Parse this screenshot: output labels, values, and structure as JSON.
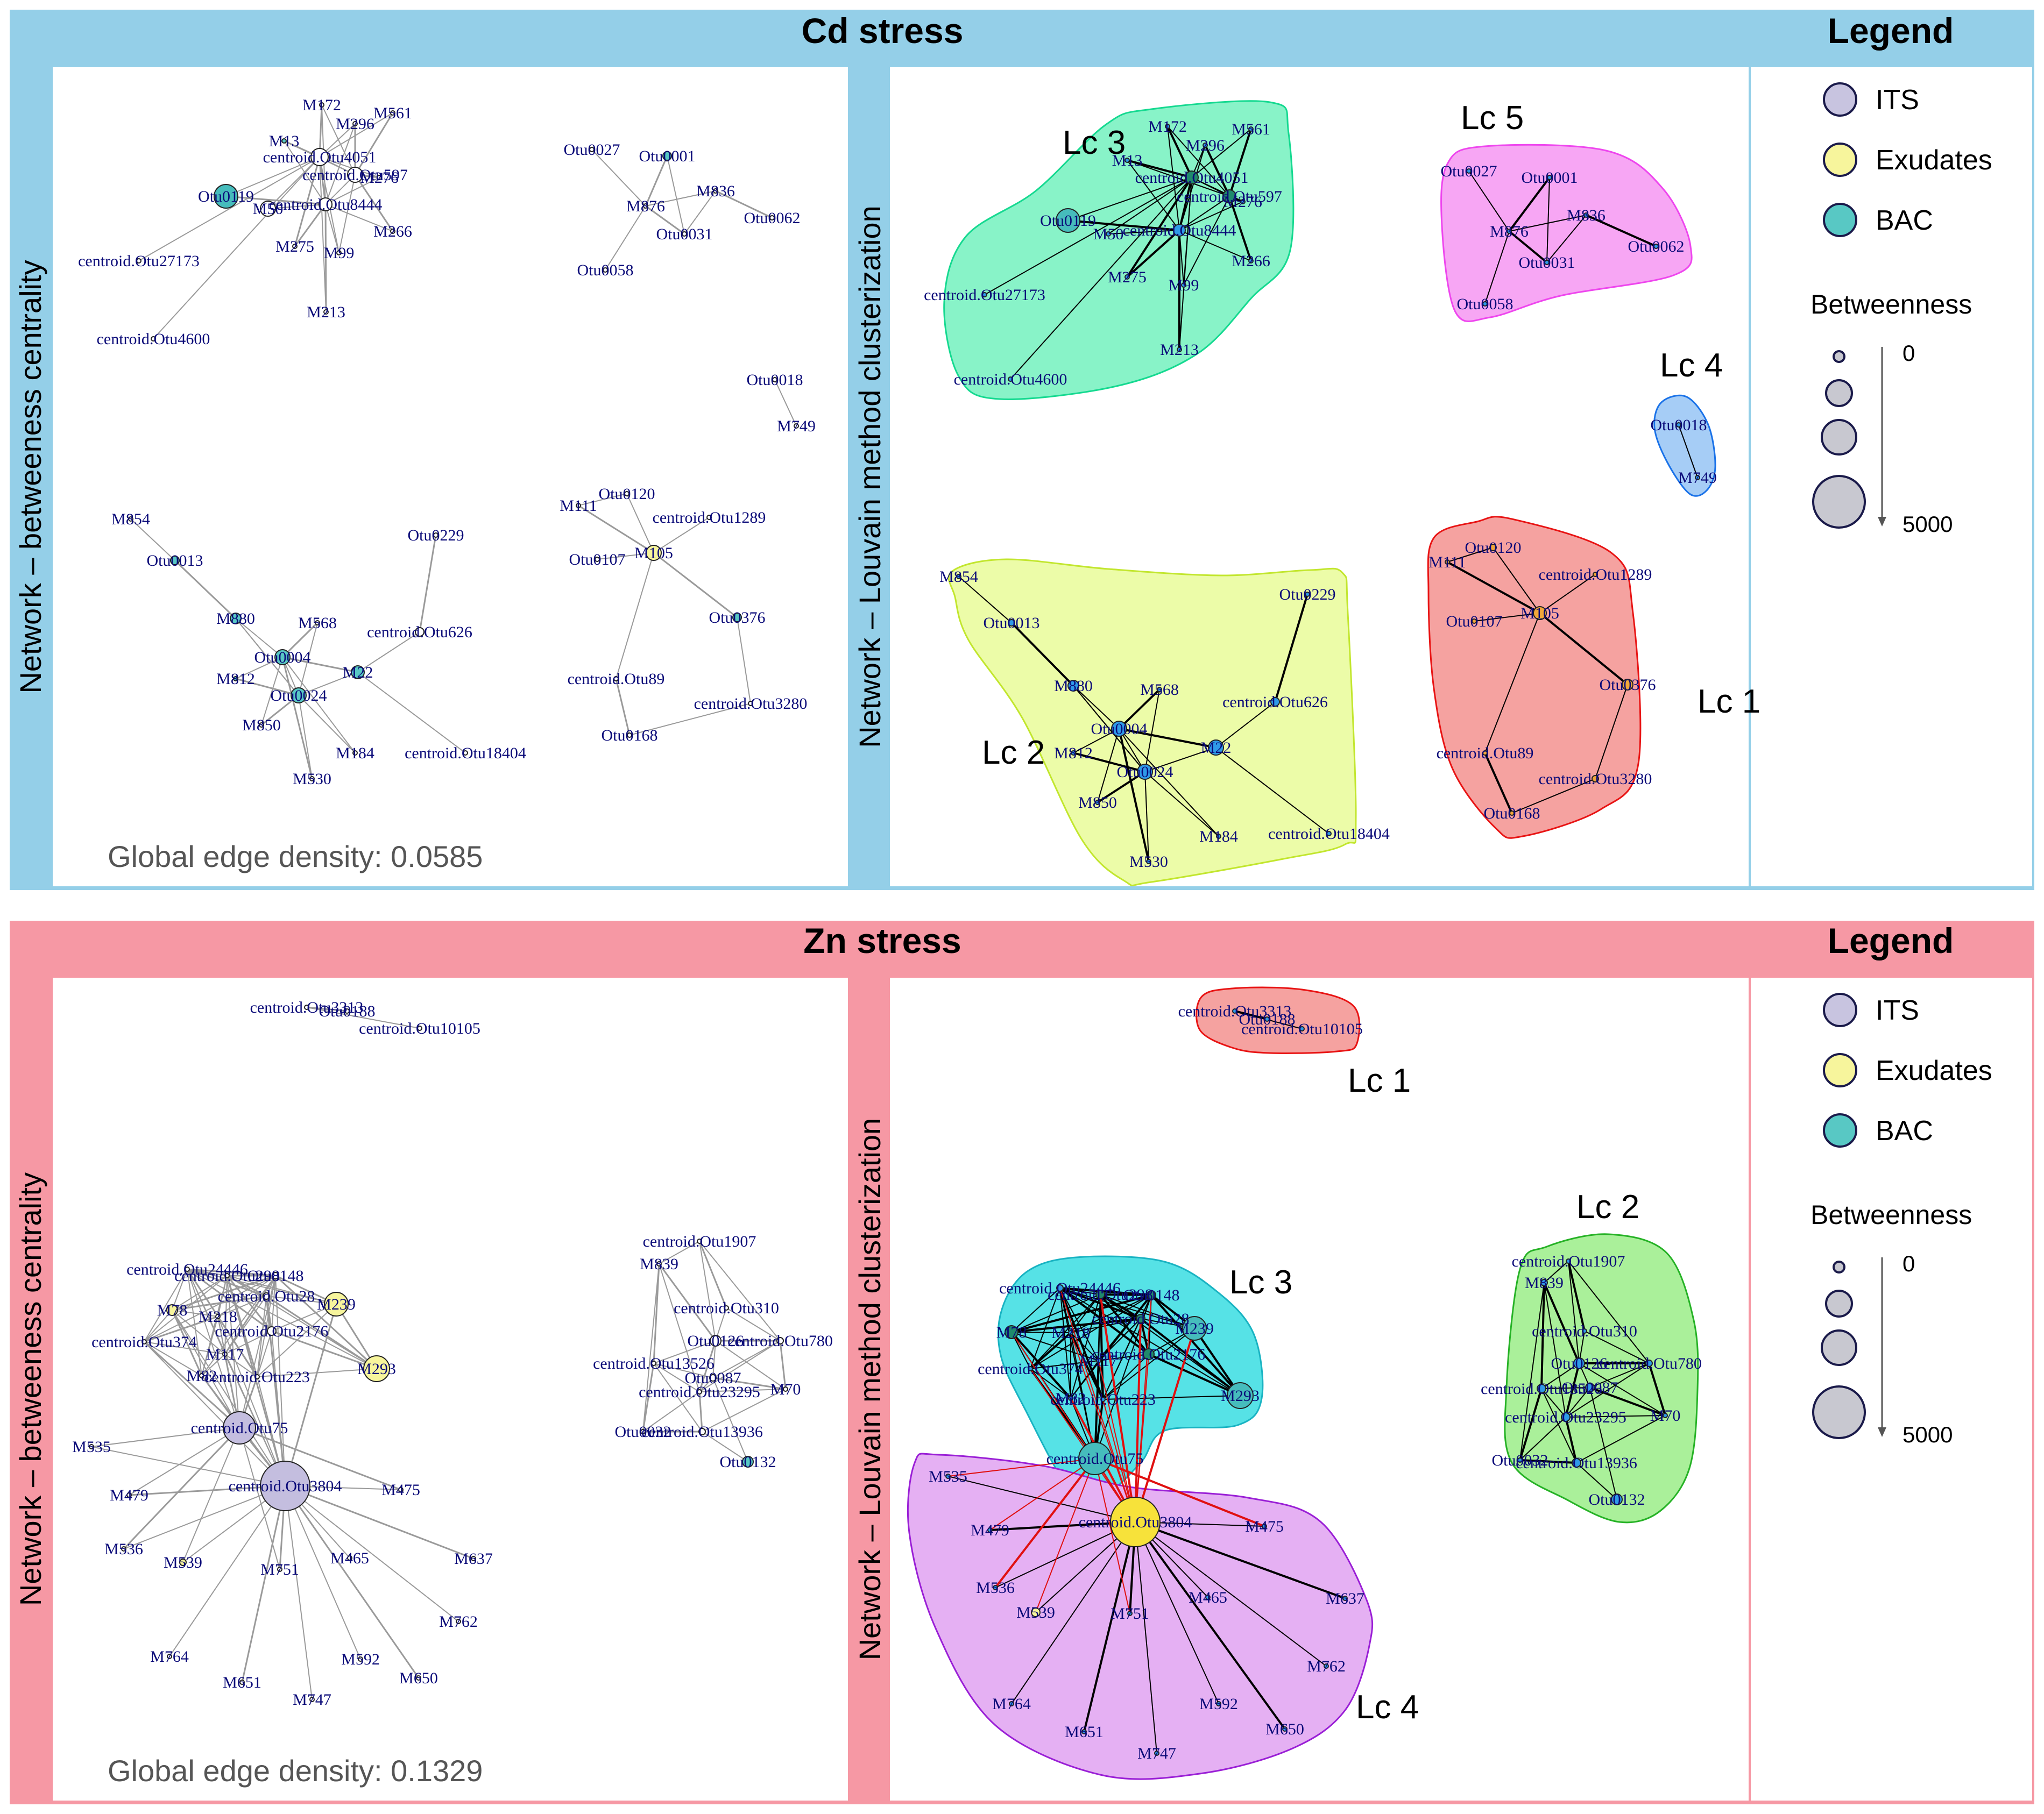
{
  "colors": {
    "cd_band": "#94cfe8",
    "zn_band": "#f698a4",
    "its": "#c8c4e0",
    "exudates": "#f7f59c",
    "bac": "#58c8c4",
    "node_blue": "#2f9ae8",
    "node_teal": "#1f8a6c",
    "node_orange": "#f2a73a",
    "node_yellow": "#f7e23a",
    "node_lav": "#c4bedf",
    "edge_gray": "#9a9a9a",
    "edge_black": "#000000",
    "edge_red": "#e01010",
    "label": "#0a0a78"
  },
  "legend": {
    "title": "Legend",
    "items": [
      {
        "label": "ITS",
        "color": "#c8c4e0"
      },
      {
        "label": "Exudates",
        "color": "#f7f59c"
      },
      {
        "label": "BAC",
        "color": "#58c8c4"
      }
    ],
    "betweenness_title": "Betweenness",
    "b_min": "0",
    "b_max": "5000"
  },
  "panels": [
    {
      "id": "cd",
      "title": "Cd stress",
      "left_label": "Network – betweeness centrality",
      "right_label": "Network – Louvain method clusterization",
      "density": "Global edge density: 0.0585",
      "clusters": [
        {
          "name": "Lc 3",
          "color": "#15d990"
        },
        {
          "name": "Lc 5",
          "color": "#ee46ee"
        },
        {
          "name": "Lc 4",
          "color": "#1a1ae8"
        },
        {
          "name": "Lc 2",
          "color": "#f2c033"
        },
        {
          "name": "Lc 1",
          "color": "#e81414"
        }
      ],
      "nodes": [
        {
          "label": "M172"
        },
        {
          "label": "M561"
        },
        {
          "label": "M296"
        },
        {
          "label": "M13"
        },
        {
          "label": "centroid.Otu4051"
        },
        {
          "label": "centroid.Otu597"
        },
        {
          "label": "M276"
        },
        {
          "label": "Otu0119"
        },
        {
          "label": "M50"
        },
        {
          "label": "centroid.Otu8444"
        },
        {
          "label": "M275"
        },
        {
          "label": "M266"
        },
        {
          "label": "M99"
        },
        {
          "label": "centroid.Otu27173"
        },
        {
          "label": "M213"
        },
        {
          "label": "centroid.Otu4600"
        },
        {
          "label": "Otu0027"
        },
        {
          "label": "Otu0001"
        },
        {
          "label": "M836"
        },
        {
          "label": "M876"
        },
        {
          "label": "Otu0031"
        },
        {
          "label": "Otu0062"
        },
        {
          "label": "Otu0058"
        },
        {
          "label": "Otu0018"
        },
        {
          "label": "M749"
        },
        {
          "label": "M854"
        },
        {
          "label": "Otu0013"
        },
        {
          "label": "M880"
        },
        {
          "label": "M568"
        },
        {
          "label": "Otu0004"
        },
        {
          "label": "M812"
        },
        {
          "label": "Otu0024"
        },
        {
          "label": "M850"
        },
        {
          "label": "M22"
        },
        {
          "label": "centroid.Otu626"
        },
        {
          "label": "Otu0229"
        },
        {
          "label": "M184"
        },
        {
          "label": "M530"
        },
        {
          "label": "centroid.Otu18404"
        },
        {
          "label": "Otu0120"
        },
        {
          "label": "M111"
        },
        {
          "label": "centroid.Otu1289"
        },
        {
          "label": "Otu0107"
        },
        {
          "label": "M105"
        },
        {
          "label": "Otu0376"
        },
        {
          "label": "centroid.Otu89"
        },
        {
          "label": "centroid.Otu3280"
        },
        {
          "label": "Otu0168"
        }
      ]
    },
    {
      "id": "zn",
      "title": "Zn stress",
      "left_label": "Network – betweeness centrality",
      "right_label": "Network – Louvain method clusterization",
      "density": "Global edge density: 0.1329",
      "clusters": [
        {
          "name": "Lc 1",
          "color": "#e81414"
        },
        {
          "name": "Lc 2",
          "color": "#26b226"
        },
        {
          "name": "Lc 3",
          "color": "#19b3c2"
        },
        {
          "name": "Lc 4",
          "color": "#ea38ea"
        }
      ],
      "nodes": [
        {
          "label": "centroid.Otu3313"
        },
        {
          "label": "Otu0188"
        },
        {
          "label": "centroid.Otu10105"
        },
        {
          "label": "centroid.Otu24446"
        },
        {
          "label": "centroid.Otu298"
        },
        {
          "label": "Otu0148"
        },
        {
          "label": "M78"
        },
        {
          "label": "M218"
        },
        {
          "label": "centroid.Otu28"
        },
        {
          "label": "M239"
        },
        {
          "label": "centroid.Otu374"
        },
        {
          "label": "centroid.Otu2176"
        },
        {
          "label": "M117"
        },
        {
          "label": "M82"
        },
        {
          "label": "centroid.Otu223"
        },
        {
          "label": "M293"
        },
        {
          "label": "centroid.Otu75"
        },
        {
          "label": "centroid.Otu3804"
        },
        {
          "label": "M535"
        },
        {
          "label": "M479"
        },
        {
          "label": "M536"
        },
        {
          "label": "M539"
        },
        {
          "label": "M751"
        },
        {
          "label": "M465"
        },
        {
          "label": "M475"
        },
        {
          "label": "M637"
        },
        {
          "label": "M762"
        },
        {
          "label": "M764"
        },
        {
          "label": "M651"
        },
        {
          "label": "M747"
        },
        {
          "label": "M592"
        },
        {
          "label": "M650"
        },
        {
          "label": "centroid.Otu1907"
        },
        {
          "label": "M839"
        },
        {
          "label": "centroid.Otu310"
        },
        {
          "label": "Otu0126"
        },
        {
          "label": "centroid.Otu780"
        },
        {
          "label": "centroid.Otu13526"
        },
        {
          "label": "Otu0087"
        },
        {
          "label": "centroid.Otu23295"
        },
        {
          "label": "M70"
        },
        {
          "label": "Otu0032"
        },
        {
          "label": "centroid.Otu13936"
        },
        {
          "label": "Otu0132"
        }
      ]
    }
  ]
}
